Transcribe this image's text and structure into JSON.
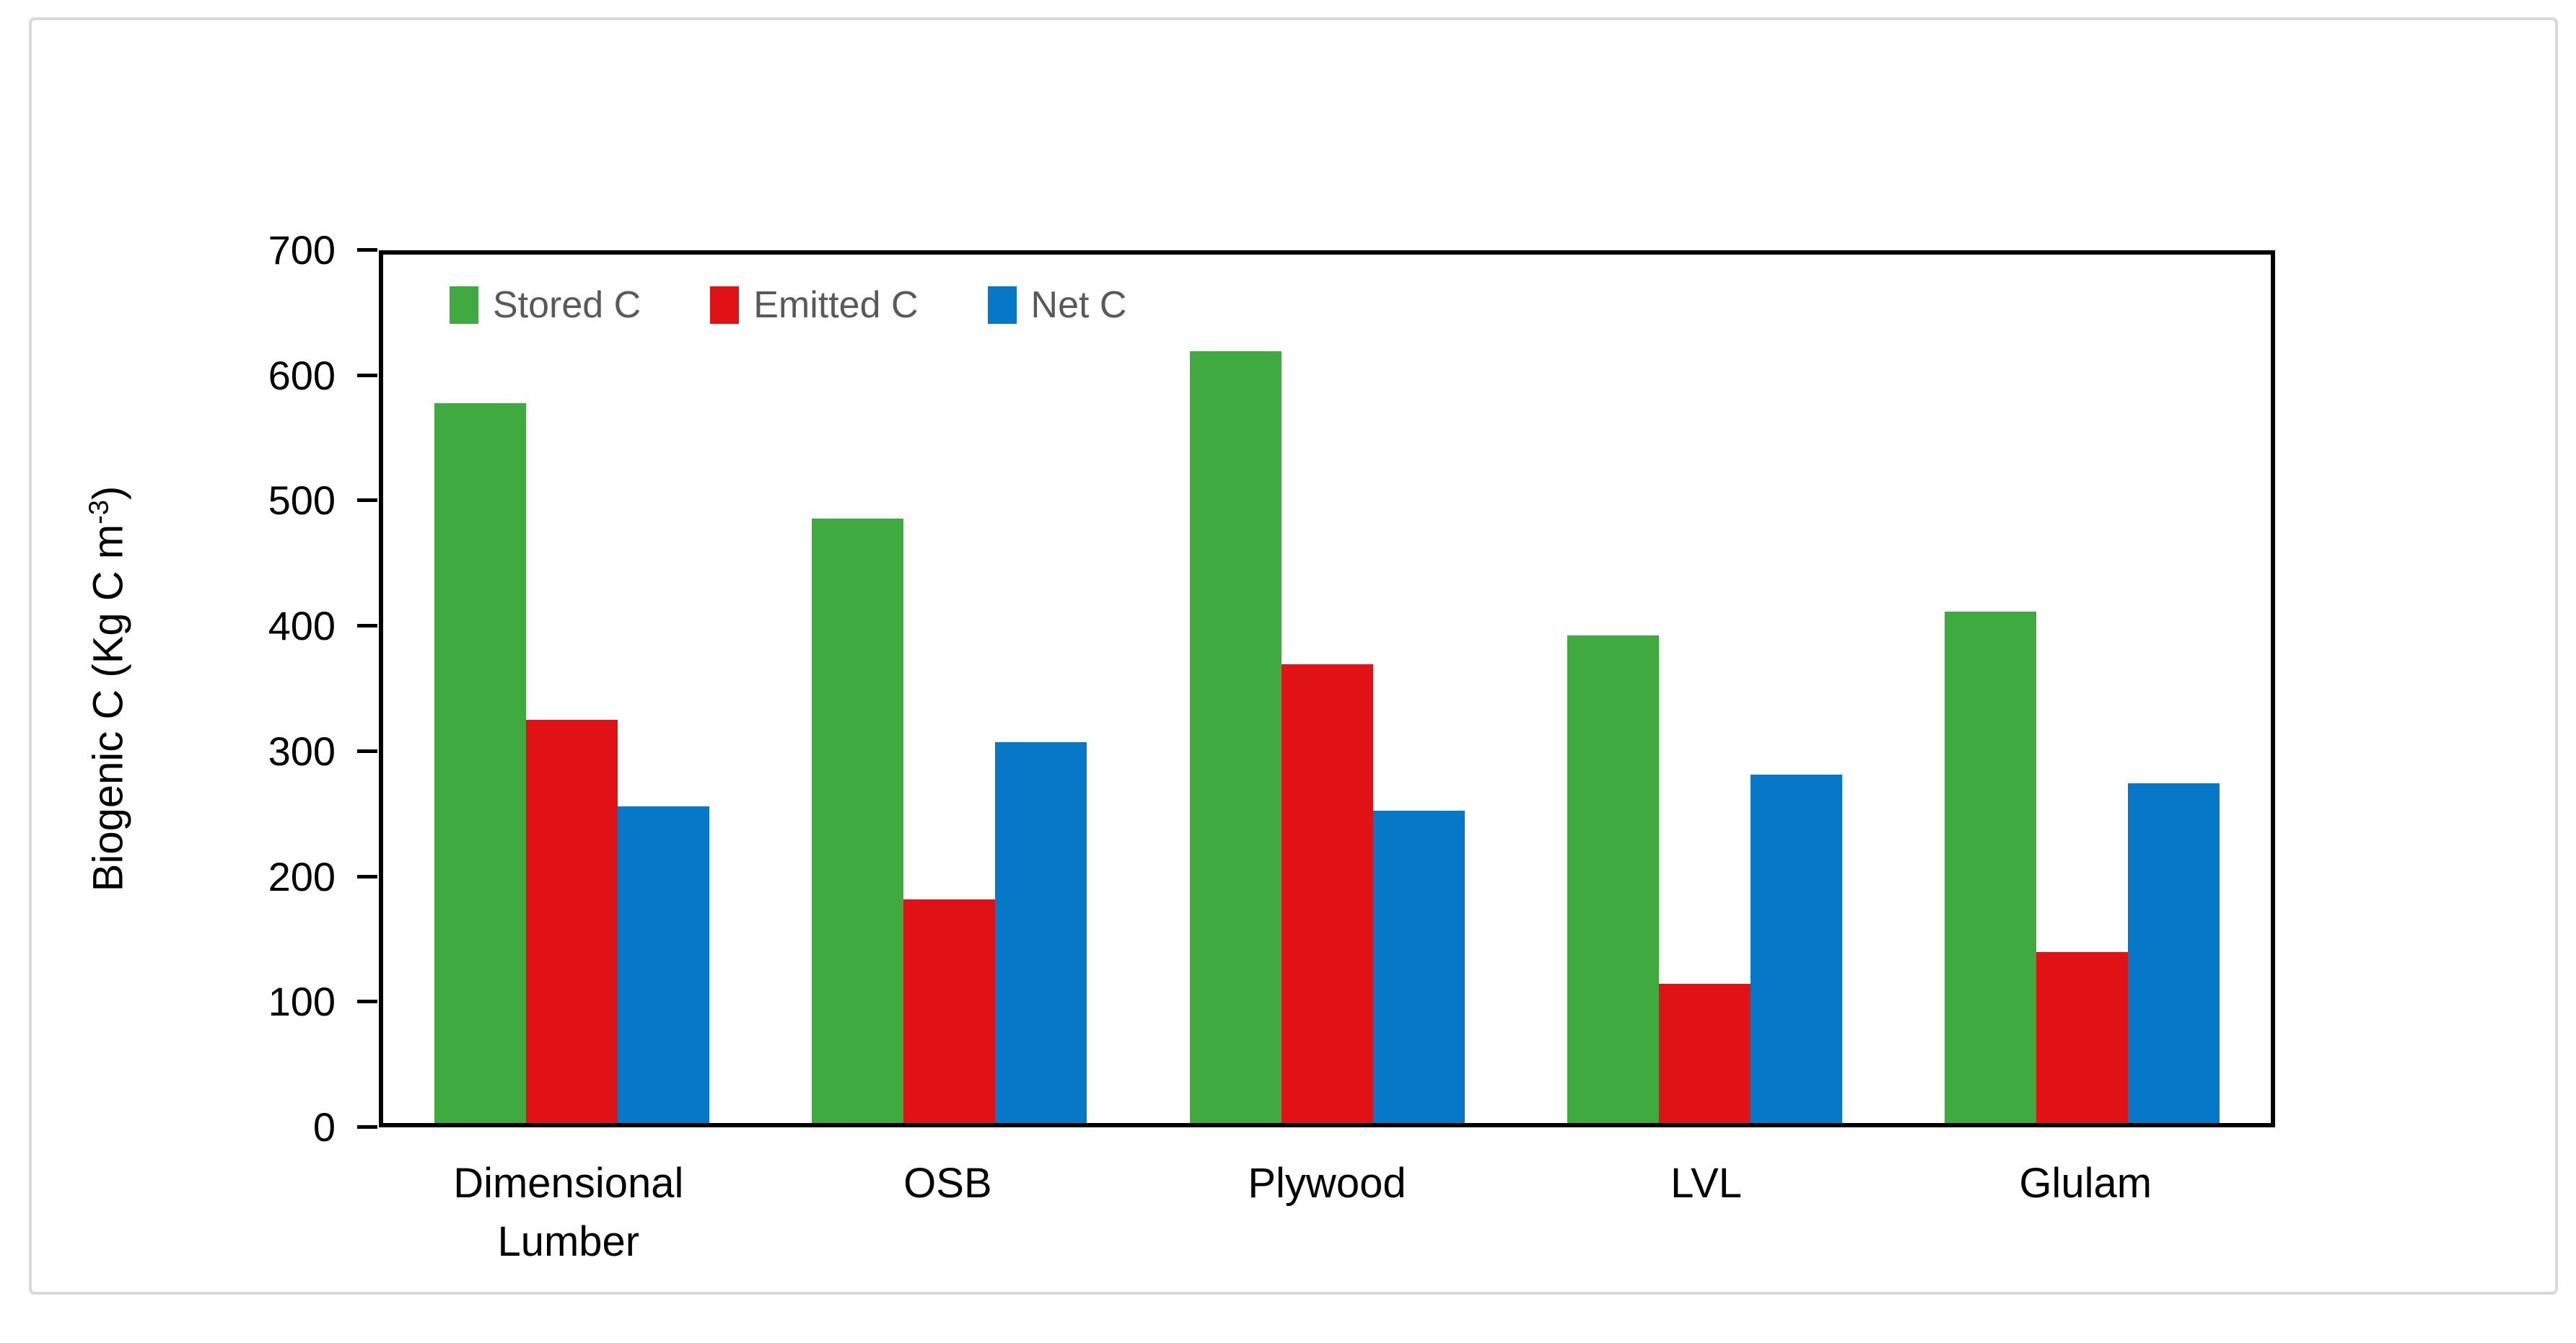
{
  "chart_data": {
    "type": "bar",
    "title": "",
    "categories": [
      "Dimensional Lumber",
      "OSB",
      "Plywood",
      "LVL",
      "Glulam"
    ],
    "series": [
      {
        "name": "Stored C",
        "color": "#3faa3f",
        "values": [
          580,
          487,
          622,
          393,
          412
        ]
      },
      {
        "name": "Emitted C",
        "color": "#e01215",
        "values": [
          325,
          180,
          370,
          112,
          138
        ]
      },
      {
        "name": "Net C",
        "color": "#0778c8",
        "values": [
          255,
          307,
          252,
          281,
          274
        ]
      }
    ],
    "xlabel": "",
    "ylabel_prefix": "Biogenic C (Kg C m",
    "ylabel_sup": "-3",
    "ylabel_suffix": ")",
    "ylim": [
      0,
      700
    ],
    "yticks": [
      0,
      100,
      200,
      300,
      400,
      500,
      600,
      700
    ],
    "grid": false,
    "legend_position": "inside-top-left",
    "axis_color": "#000000",
    "legend_text_color": "#595959",
    "panel_border_color": "#d9d9d9"
  }
}
